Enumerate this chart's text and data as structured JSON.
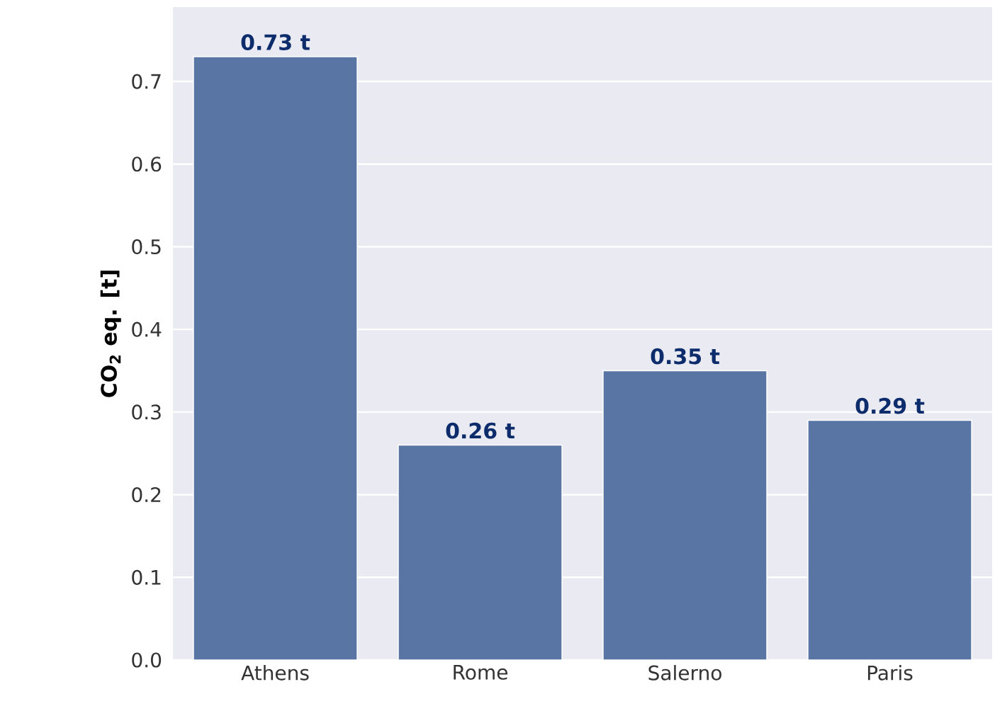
{
  "chart_data": {
    "type": "bar",
    "ylabel": "CO$_{2}$ eq.  [t]",
    "categories": [
      "Athens",
      "Rome",
      "Salerno",
      "Paris"
    ],
    "values": [
      0.73,
      0.26,
      0.35,
      0.29
    ],
    "value_labels": [
      "0.73 t",
      "0.26 t",
      "0.35 t",
      "0.29 t"
    ],
    "color": "#5875a4",
    "ylim": [
      0,
      0.79
    ],
    "yticks": [
      {
        "value": 0,
        "label": "0.0"
      },
      0.1,
      0.2,
      0.3,
      0.4,
      0.5,
      0.6,
      0.7
    ],
    "grid": "y"
  }
}
